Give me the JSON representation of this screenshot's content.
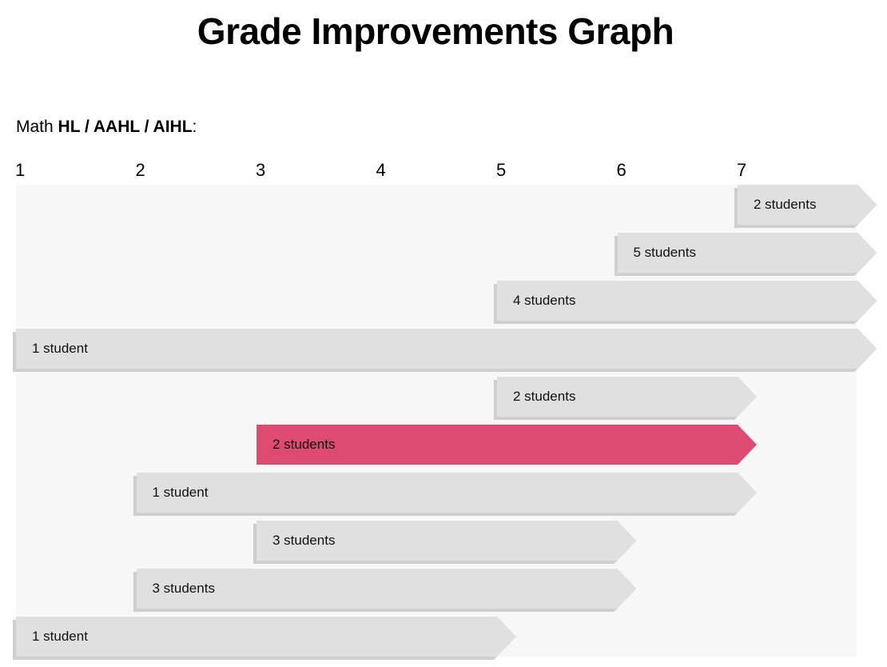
{
  "title": "Grade Improvements Graph",
  "subject": {
    "prefix": "Math",
    "levels": "HL / AAHL / AIHL",
    "suffix": ":"
  },
  "colors": {
    "bar": "#e0e0e0",
    "highlight": "#de4b72",
    "background": "#f7f7f7"
  },
  "chart_data": {
    "type": "bar",
    "orientation": "horizontal-range",
    "x_ticks": [
      1,
      2,
      3,
      4,
      5,
      6,
      7
    ],
    "xlim": [
      1,
      8
    ],
    "series": [
      {
        "from": 7,
        "to": 8,
        "label": "2 students",
        "highlight": false
      },
      {
        "from": 6,
        "to": 8,
        "label": "5 students",
        "highlight": false
      },
      {
        "from": 5,
        "to": 8,
        "label": "4 students",
        "highlight": false
      },
      {
        "from": 1,
        "to": 8,
        "label": "1 student",
        "highlight": false
      },
      {
        "from": 5,
        "to": 7,
        "label": "2 students",
        "highlight": false
      },
      {
        "from": 3,
        "to": 7,
        "label": "2 students",
        "highlight": true
      },
      {
        "from": 2,
        "to": 7,
        "label": "1 student",
        "highlight": false
      },
      {
        "from": 3,
        "to": 6,
        "label": "3 students",
        "highlight": false
      },
      {
        "from": 2,
        "to": 6,
        "label": "3 students",
        "highlight": false
      },
      {
        "from": 1,
        "to": 5,
        "label": "1 student",
        "highlight": false
      }
    ]
  }
}
